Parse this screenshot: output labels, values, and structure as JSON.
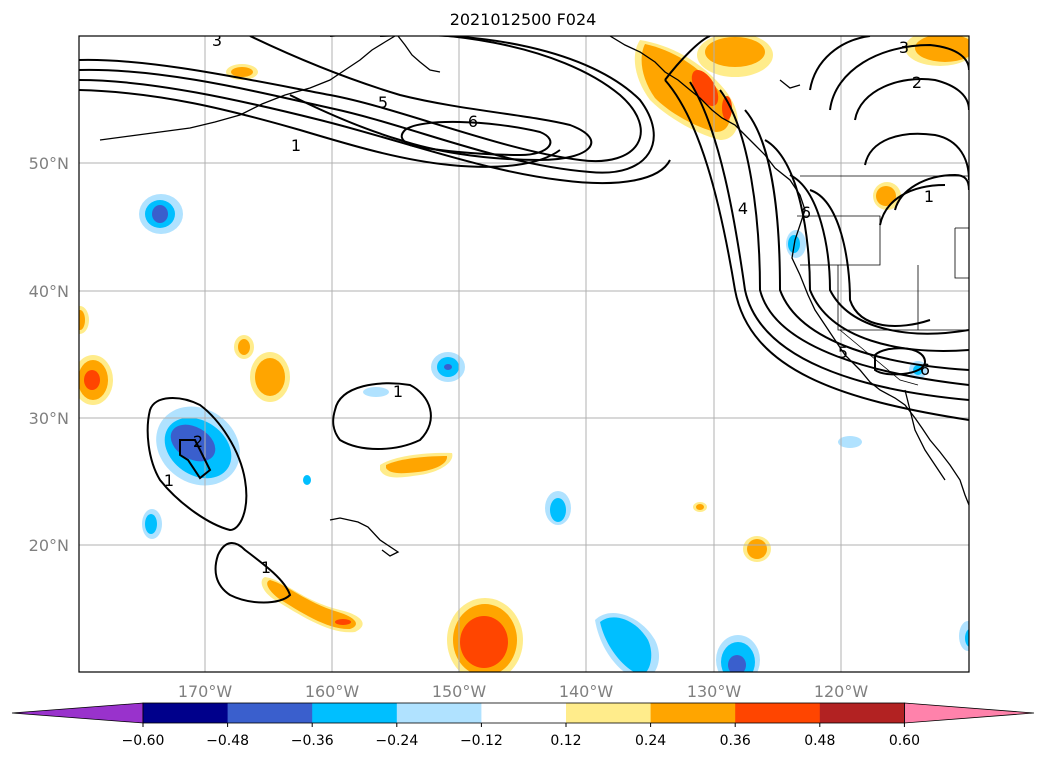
{
  "title": "2021012500 F024",
  "axes": {
    "lat_labels": [
      "50°N",
      "40°N",
      "30°N",
      "20°N"
    ],
    "lon_labels": [
      "170°W",
      "160°W",
      "150°W",
      "140°W",
      "130°W",
      "120°W"
    ]
  },
  "colorbar": {
    "ticks": [
      "−0.60",
      "−0.48",
      "−0.36",
      "−0.24",
      "−0.12",
      "0.12",
      "0.24",
      "0.36",
      "0.48",
      "0.60"
    ],
    "colors": [
      "#9932cc",
      "#00008b",
      "#3a5fcd",
      "#00bfff",
      "#b0e2ff",
      "#ffffff",
      "#ffec8b",
      "#ffa500",
      "#ff4500",
      "#b22222",
      "#ff82ab"
    ]
  },
  "contour_labels": [
    {
      "id": "c1",
      "text": "1"
    },
    {
      "id": "c2",
      "text": "5"
    },
    {
      "id": "c3",
      "text": "6"
    },
    {
      "id": "c4",
      "text": "3"
    },
    {
      "id": "c5",
      "text": "2"
    },
    {
      "id": "c6",
      "text": "3"
    },
    {
      "id": "c7",
      "text": "4"
    },
    {
      "id": "c8",
      "text": "6"
    },
    {
      "id": "c9",
      "text": "1"
    },
    {
      "id": "c10",
      "text": "5"
    },
    {
      "id": "c11",
      "text": "6"
    },
    {
      "id": "c12",
      "text": "1"
    },
    {
      "id": "c13",
      "text": "1"
    },
    {
      "id": "c14",
      "text": "2"
    },
    {
      "id": "c15",
      "text": "1"
    }
  ]
}
